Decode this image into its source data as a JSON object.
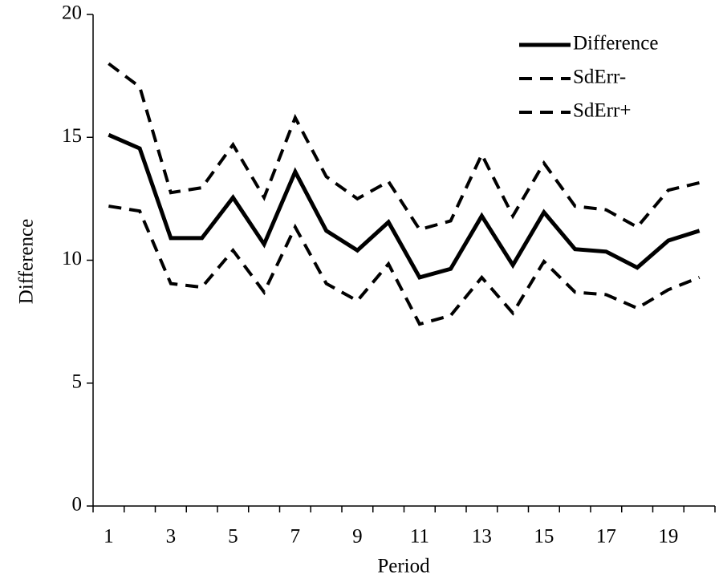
{
  "chart_data": {
    "type": "line",
    "title": "",
    "xlabel": "Period",
    "ylabel": "Difference",
    "x": [
      1,
      2,
      3,
      4,
      5,
      6,
      7,
      8,
      9,
      10,
      11,
      12,
      13,
      14,
      15,
      16,
      17,
      18,
      19,
      20
    ],
    "x_tick_labels": [
      "1",
      "3",
      "5",
      "7",
      "9",
      "11",
      "13",
      "15",
      "17",
      "19"
    ],
    "y_tick_labels": [
      "0",
      "5",
      "10",
      "15",
      "20"
    ],
    "xlim": [
      0.5,
      20.5
    ],
    "ylim": [
      0,
      20
    ],
    "grid": false,
    "legend_position": "top-right",
    "series": [
      {
        "name": "Difference",
        "style": "solid",
        "color": "#000000",
        "values": [
          15.1,
          14.55,
          10.9,
          10.9,
          12.55,
          10.65,
          13.6,
          11.2,
          10.4,
          11.55,
          9.3,
          9.65,
          11.8,
          9.8,
          11.95,
          10.45,
          10.35,
          9.7,
          10.8,
          11.2
        ]
      },
      {
        "name": "SdErr-",
        "style": "dashed",
        "color": "#000000",
        "values": [
          18.0,
          17.05,
          12.75,
          12.95,
          14.7,
          12.55,
          15.8,
          13.4,
          12.5,
          13.2,
          11.25,
          11.6,
          14.3,
          11.8,
          13.95,
          12.2,
          12.05,
          11.35,
          12.85,
          13.15
        ]
      },
      {
        "name": "SdErr+",
        "style": "dashed",
        "color": "#000000",
        "values": [
          12.2,
          12.0,
          9.05,
          8.9,
          10.4,
          8.7,
          11.35,
          9.05,
          8.35,
          9.85,
          7.4,
          7.75,
          9.3,
          7.85,
          9.95,
          8.7,
          8.6,
          8.05,
          8.8,
          9.3
        ]
      }
    ]
  }
}
